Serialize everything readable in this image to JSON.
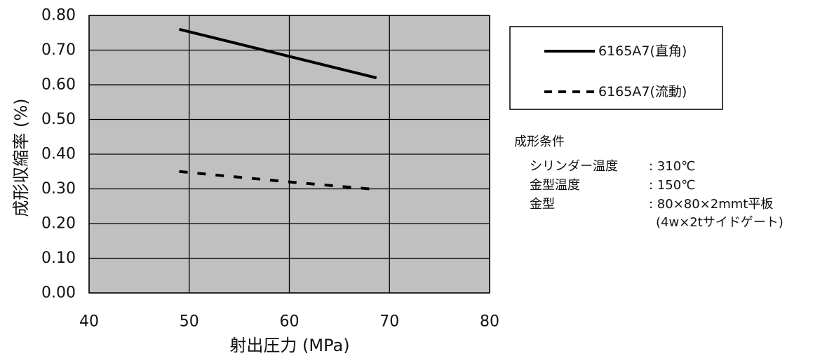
{
  "chart_data": {
    "type": "line",
    "xlabel": "射出圧力 (MPa)",
    "ylabel": "成形収縮率 (%)",
    "xlim": [
      40,
      80
    ],
    "ylim": [
      0,
      0.8
    ],
    "x_ticks": [
      "40",
      "50",
      "60",
      "70",
      "80"
    ],
    "y_ticks": [
      "0.00",
      "0.10",
      "0.20",
      "0.30",
      "0.40",
      "0.50",
      "0.60",
      "0.70",
      "0.80"
    ],
    "grid": true,
    "legend": "right",
    "plot_background": "#c0c0c0",
    "series": [
      {
        "name": "6165A7(直角)",
        "style": "solid",
        "color": "#000000",
        "x": [
          49,
          68.7
        ],
        "y": [
          0.76,
          0.62
        ]
      },
      {
        "name": "6165A7(流動)",
        "style": "dashed",
        "color": "#000000",
        "x": [
          49,
          60,
          68
        ],
        "y": [
          0.35,
          0.32,
          0.3
        ]
      }
    ]
  },
  "conditions": {
    "title": "成形条件",
    "rows": [
      {
        "label": "シリンダー温度",
        "value": ": 310℃"
      },
      {
        "label": "金型温度",
        "value": ": 150℃"
      },
      {
        "label": "金型",
        "value": ": 80×80×2mmt平板"
      }
    ],
    "note": "(4w×2tサイドゲート)"
  }
}
